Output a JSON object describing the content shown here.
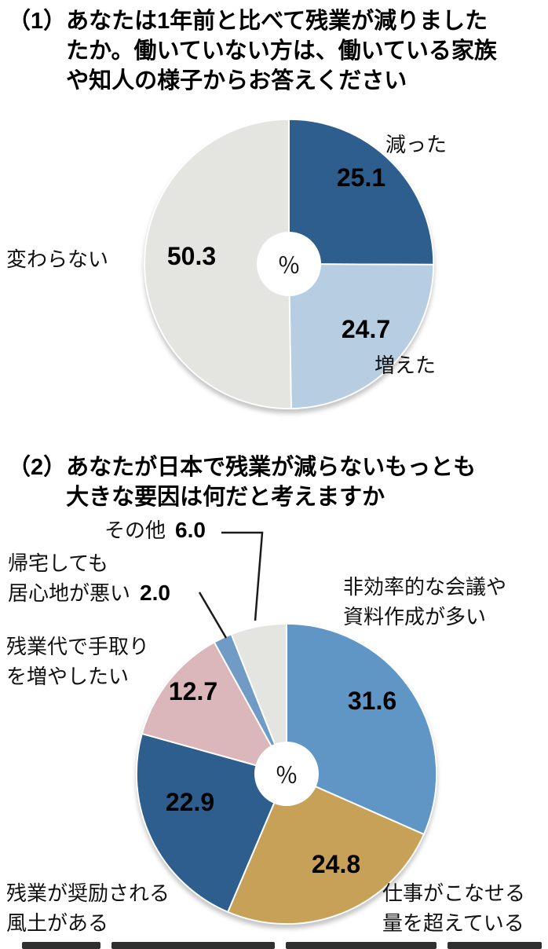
{
  "chart_data": [
    {
      "type": "pie",
      "number": "（1）",
      "title": "あなたは1年前と比べて残業が減りましたか。働いていない方は、働いている家族や知人の様子からお答えください",
      "title_lines": [
        "あなたは1年前と比べて残業が減りました",
        "たか。働いていない方は、働いている家族",
        "や知人の様子からお答えください"
      ],
      "unit": "％",
      "start_angle": "top",
      "direction": "clockwise",
      "donut_hole": true,
      "legend_position": "outside",
      "slices": [
        {
          "label": "減った",
          "value": 25.1,
          "display": "25.1",
          "color": "#2d5e8e"
        },
        {
          "label": "増えた",
          "value": 24.7,
          "display": "24.7",
          "color": "#b7cde2"
        },
        {
          "label": "変わらない",
          "value": 50.3,
          "display": "50.3",
          "color": "#e4e4e0"
        }
      ]
    },
    {
      "type": "pie",
      "number": "（2）",
      "title": "あなたが日本で残業が減らないもっとも大きな要因は何だと考えますか",
      "title_lines": [
        "あなたが日本で残業が減らないもっとも",
        "大きな要因は何だと考えますか"
      ],
      "unit": "％",
      "start_angle": "top",
      "direction": "clockwise",
      "donut_hole": true,
      "legend_position": "outside",
      "slices": [
        {
          "label": "非効率的な会議や資料作成が多い",
          "label_lines": [
            "非効率的な会議や",
            "資料作成が多い"
          ],
          "value": 31.6,
          "display": "31.6",
          "color": "#5f96c5"
        },
        {
          "label": "仕事がこなせる量を超えている",
          "label_lines": [
            "仕事がこなせる",
            "量を超えている"
          ],
          "value": 24.8,
          "display": "24.8",
          "color": "#c7a158"
        },
        {
          "label": "残業が奨励される風土がある",
          "label_lines": [
            "残業が奨励される",
            "風土がある"
          ],
          "value": 22.9,
          "display": "22.9",
          "color": "#2d5e8e"
        },
        {
          "label": "残業代で手取りを増やしたい",
          "label_lines": [
            "残業代で手取り",
            "を増やしたい"
          ],
          "value": 12.7,
          "display": "12.7",
          "color": "#dbb6ba"
        },
        {
          "label": "帰宅しても居心地が悪い",
          "label_lines": [
            "帰宅しても",
            "居心地が悪い"
          ],
          "value": 2.0,
          "display": "2.0",
          "color": "#6f9bc4"
        },
        {
          "label": "その他",
          "label_lines": [
            "その他"
          ],
          "value": 6.0,
          "display": "6.0",
          "color": "#e4e4e0"
        }
      ]
    }
  ]
}
